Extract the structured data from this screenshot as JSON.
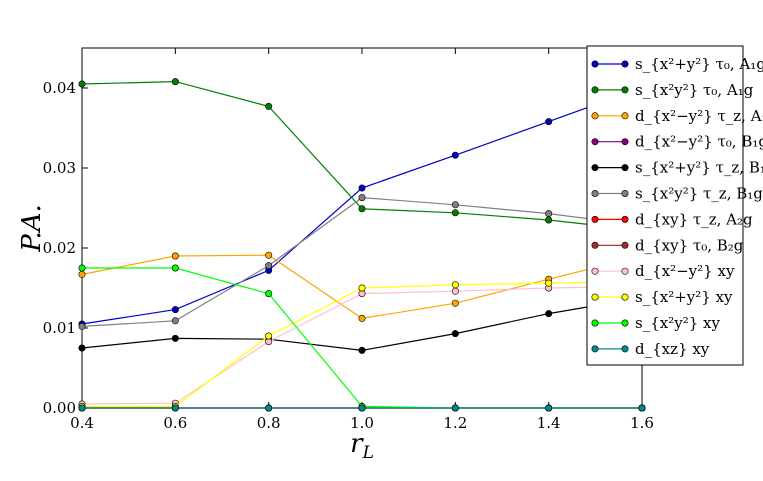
{
  "chart_data": {
    "type": "line",
    "xlabel": "r_L",
    "ylabel": "P.A.",
    "xlim": [
      0.4,
      1.6
    ],
    "ylim": [
      0,
      0.045
    ],
    "x_ticks": [
      "0.4",
      "0.6",
      "0.8",
      "1.0",
      "1.2",
      "1.4",
      "1.6"
    ],
    "y_ticks": [
      "0.00",
      "0.01",
      "0.02",
      "0.03",
      "0.04"
    ],
    "x": [
      0.4,
      0.6,
      0.8,
      1.0,
      1.2,
      1.4,
      1.6
    ],
    "grid": false,
    "legend_position": "right",
    "series": [
      {
        "name": "s_{x²+y²} τ₀, A₁g",
        "color": "#0000cc",
        "values": [
          0.0105,
          0.0123,
          0.0172,
          0.0275,
          0.0316,
          0.0358,
          0.04
        ]
      },
      {
        "name": "s_{x²y²} τ₀, A₁g",
        "color": "#007f00",
        "values": [
          0.0405,
          0.0408,
          0.0377,
          0.0249,
          0.0244,
          0.0235,
          0.0222
        ]
      },
      {
        "name": "d_{x²−y²} τ_z, A₁g",
        "color": "#ffa500",
        "values": [
          0.0167,
          0.019,
          0.0191,
          0.0112,
          0.0131,
          0.0161,
          0.019
        ]
      },
      {
        "name": "d_{x²−y²} τ₀, B₁g",
        "color": "#800080",
        "values": [
          0.0,
          0.0,
          0.0,
          0.0,
          0.0,
          0.0,
          0.0
        ]
      },
      {
        "name": "s_{x²+y²} τ_z, B₁g",
        "color": "#000000",
        "values": [
          0.0075,
          0.0087,
          0.0086,
          0.0072,
          0.0093,
          0.0118,
          0.0138
        ]
      },
      {
        "name": "s_{x²y²} τ_z, B₁g",
        "color": "#808080",
        "values": [
          0.0102,
          0.0109,
          0.0178,
          0.0263,
          0.0254,
          0.0243,
          0.0228
        ]
      },
      {
        "name": "d_{xy} τ_z, A₂g",
        "color": "#ff0000",
        "values": [
          0.0,
          0.0,
          0.0,
          0.0,
          0.0,
          0.0,
          0.0
        ]
      },
      {
        "name": "d_{xy} τ₀, B₂g",
        "color": "#a52a2a",
        "values": [
          0.0,
          0.0,
          0.0,
          0.0,
          0.0,
          0.0,
          0.0
        ]
      },
      {
        "name": "d_{x²−y²} xy",
        "color": "#ffc0cb",
        "values": [
          0.0005,
          0.0006,
          0.0083,
          0.0143,
          0.0146,
          0.015,
          0.0152
        ]
      },
      {
        "name": "s_{x²+y²} xy",
        "color": "#ffff00",
        "values": [
          0.0002,
          0.0002,
          0.009,
          0.015,
          0.0154,
          0.0156,
          0.0158
        ]
      },
      {
        "name": "s_{x²y²} xy",
        "color": "#00ff00",
        "values": [
          0.0175,
          0.0175,
          0.0143,
          0.0002,
          0.0,
          0.0,
          0.0
        ]
      },
      {
        "name": "d_{xz} xy",
        "color": "#008b8b",
        "values": [
          0.0,
          0.0,
          0.0,
          0.0,
          0.0,
          0.0,
          0.0
        ]
      }
    ]
  }
}
